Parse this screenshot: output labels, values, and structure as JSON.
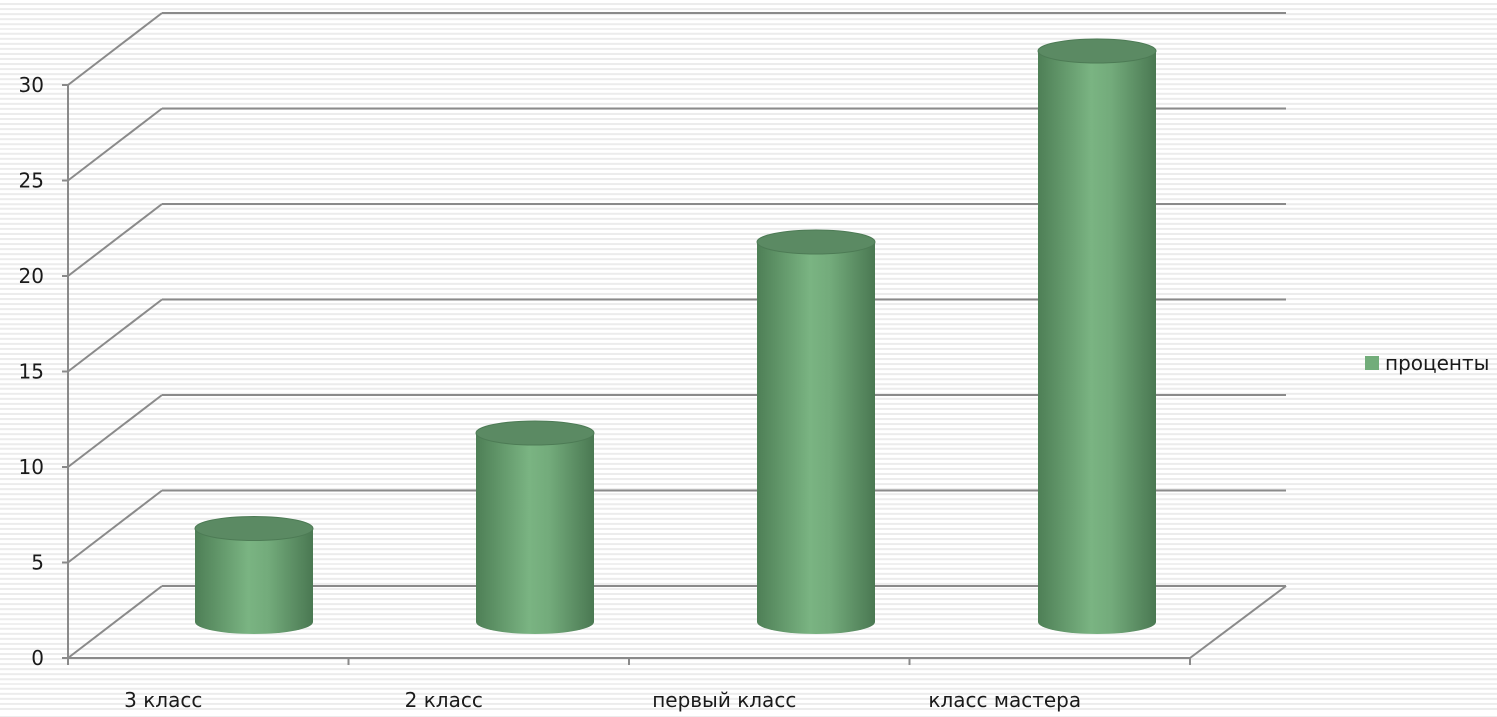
{
  "chart_data": {
    "type": "bar",
    "style": "3d-cylinder",
    "categories": [
      "3 класс",
      "2 класс",
      "первый класс",
      "класс мастера"
    ],
    "series": [
      {
        "name": "проценты",
        "values": [
          5,
          10,
          20,
          30
        ],
        "color": "#72ad7a"
      }
    ],
    "ylim": [
      0,
      30
    ],
    "yticks": [
      0,
      5,
      10,
      15,
      20,
      25,
      30
    ],
    "grid": true,
    "legend_position": "right",
    "title": "",
    "xlabel": "",
    "ylabel": ""
  }
}
